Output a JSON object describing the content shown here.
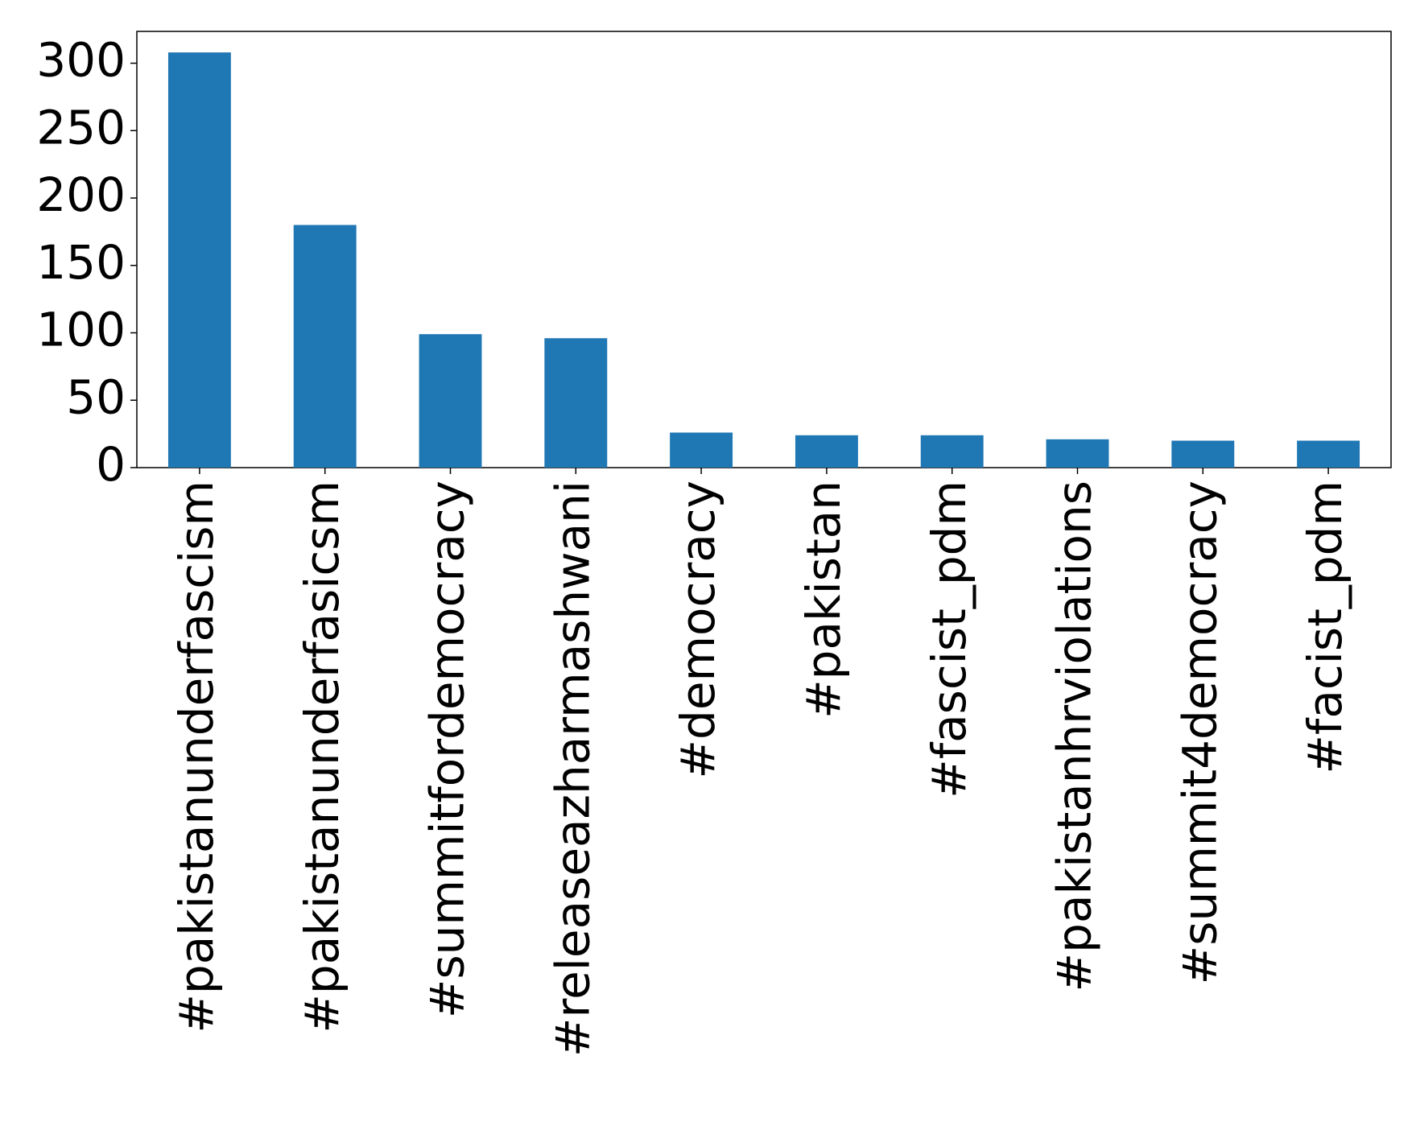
{
  "chart_data": {
    "type": "bar",
    "categories": [
      "#pakistanunderfascism",
      "#pakistanunderfasicsm",
      "#summitfordemocracy",
      "#releaseazharmashwani",
      "#democracy",
      "#pakistan",
      "#fascist_pdm",
      "#pakistanhrviolations",
      "#summit4democracy",
      "#facist_pdm"
    ],
    "values": [
      308,
      180,
      99,
      96,
      26,
      24,
      24,
      21,
      20,
      20
    ],
    "color": "#1f77b4",
    "ylim": [
      0,
      323.6
    ],
    "yticks": [
      0,
      50,
      100,
      150,
      200,
      250,
      300
    ],
    "grid": false
  }
}
